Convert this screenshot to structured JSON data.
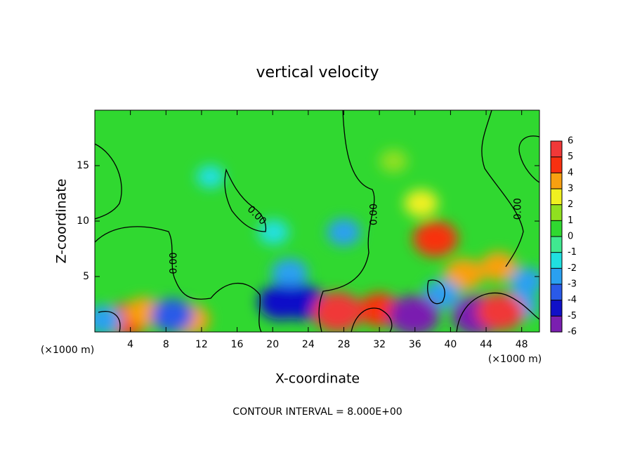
{
  "chart_data": {
    "type": "contour",
    "title": "vertical velocity",
    "x_label": "X-coordinate",
    "y_label": "Z-coordinate",
    "x_unit_left": "(×1000 m)",
    "x_unit_right": "(×1000 m)",
    "footer": "CONTOUR INTERVAL = 8.000E+00",
    "xlim": [
      0,
      50
    ],
    "ylim": [
      0,
      20
    ],
    "xticks": [
      4,
      8,
      12,
      16,
      20,
      24,
      28,
      32,
      36,
      40,
      44,
      48
    ],
    "yticks": [
      5,
      10,
      15
    ],
    "colorbar_ticks": [
      -6,
      -5,
      -4,
      -3,
      -2,
      -1,
      0,
      1,
      2,
      3,
      4,
      5,
      6
    ],
    "colors": [
      "#7a1fb0",
      "#1010c8",
      "#2a5ae8",
      "#2aa0f0",
      "#20e0e0",
      "#40e890",
      "#30d830",
      "#90e020",
      "#f0f020",
      "#f8a010",
      "#f83010",
      "#f03838"
    ],
    "cells": [
      {
        "x": 13,
        "z": 14,
        "value": -1.5
      },
      {
        "x": 33.6,
        "z": 15.4,
        "value": 1.5
      },
      {
        "x": 36.7,
        "z": 11.6,
        "value": 2.5
      },
      {
        "x": 20.1,
        "z": 9,
        "value": -2
      },
      {
        "x": 28,
        "z": 9,
        "value": -2.5
      },
      {
        "x": 21.9,
        "z": 5.3,
        "value": -3
      },
      {
        "x": 38.3,
        "z": 8.4,
        "value": 4.5
      },
      {
        "x": 41.5,
        "z": 5.2,
        "value": 3.5
      },
      {
        "x": 44.6,
        "z": 2.1,
        "value": 3
      },
      {
        "x": 45.4,
        "z": 5.9,
        "value": 3
      },
      {
        "x": 20.9,
        "z": 2.7,
        "value": -4.5
      },
      {
        "x": 23.3,
        "z": 2.7,
        "value": -4.5
      },
      {
        "x": 3.6,
        "z": 1.1,
        "value": 4
      },
      {
        "x": 5.5,
        "z": 1.8,
        "value": 3
      },
      {
        "x": 10.7,
        "z": 1.1,
        "value": 3.5
      },
      {
        "x": 32,
        "z": 2,
        "value": 4
      },
      {
        "x": 8.7,
        "z": 1.5,
        "value": -4
      },
      {
        "x": 1,
        "z": 1.1,
        "value": -3
      },
      {
        "x": 39,
        "z": 3.4,
        "value": -3
      },
      {
        "x": 47.8,
        "z": 2.4,
        "value": -3
      },
      {
        "x": 48.6,
        "z": 4.6,
        "value": -2.5
      },
      {
        "x": 27.3,
        "z": 1.8,
        "value": 5.5
      },
      {
        "x": 35.9,
        "z": 1.5,
        "value": -5.5
      },
      {
        "x": 43,
        "z": 1.5,
        "value": -5.5
      },
      {
        "x": 45.6,
        "z": 1.8,
        "value": 5
      }
    ],
    "contour_labels": [
      {
        "x": 8.9,
        "z": 6.2,
        "value": 0,
        "label": "0.00",
        "angle": -90
      },
      {
        "x": 18.2,
        "z": 10.5,
        "value": 0,
        "label": "0.00",
        "angle": 45
      },
      {
        "x": 31.4,
        "z": 10.6,
        "value": 0,
        "label": "0.00",
        "angle": -90
      },
      {
        "x": 47.6,
        "z": 11.1,
        "value": 0,
        "label": "0.00",
        "angle": -90
      }
    ]
  }
}
